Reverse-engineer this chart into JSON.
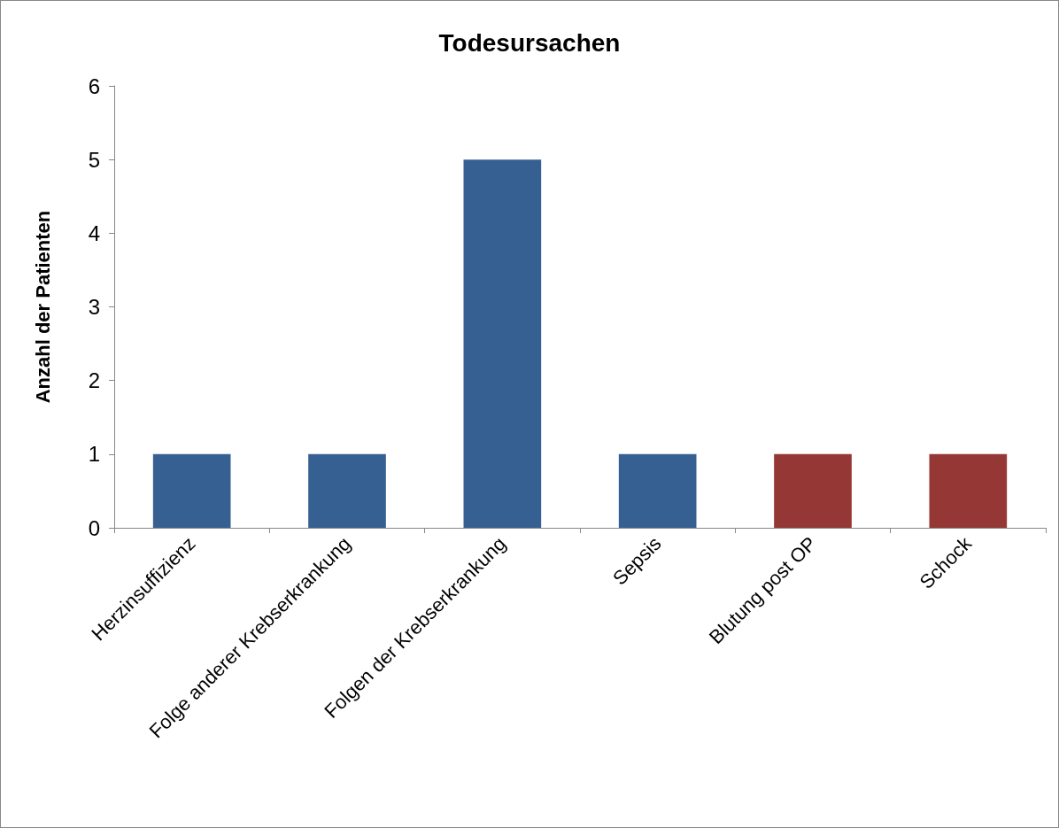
{
  "chart_data": {
    "type": "bar",
    "title": "Todesursachen",
    "ylabel": "Anzahl der Patienten",
    "categories": [
      "Herzinsuffizienz",
      "Folge anderer Krebserkrankung",
      "Folgen der Krebserkrankung",
      "Sepsis",
      "Blutung post OP",
      "Schock"
    ],
    "values": [
      1,
      1,
      5,
      1,
      1,
      1
    ],
    "colors": [
      "#376092",
      "#376092",
      "#376092",
      "#376092",
      "#953735",
      "#953735"
    ],
    "ylim": [
      0,
      6
    ],
    "yticks": [
      0,
      1,
      2,
      3,
      4,
      5,
      6
    ],
    "grid": false
  }
}
